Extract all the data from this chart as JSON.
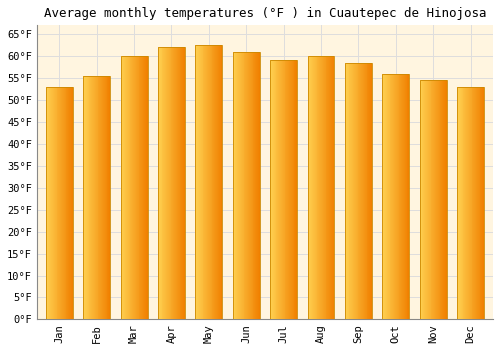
{
  "title": "Average monthly temperatures (°F ) in Cuautepec de Hinojosa",
  "months": [
    "Jan",
    "Feb",
    "Mar",
    "Apr",
    "May",
    "Jun",
    "Jul",
    "Aug",
    "Sep",
    "Oct",
    "Nov",
    "Dec"
  ],
  "values": [
    53.0,
    55.5,
    60.0,
    62.0,
    62.5,
    61.0,
    59.0,
    60.0,
    58.5,
    56.0,
    54.5,
    53.0
  ],
  "bar_color_left": "#FFD050",
  "bar_color_right": "#F08000",
  "bar_edge_color": "#CC8800",
  "background_color": "#FFFFFF",
  "plot_bg_color": "#FFF5E0",
  "grid_color": "#DDDDDD",
  "ylim": [
    0,
    67
  ],
  "yticks": [
    0,
    5,
    10,
    15,
    20,
    25,
    30,
    35,
    40,
    45,
    50,
    55,
    60,
    65
  ],
  "title_fontsize": 9,
  "tick_fontsize": 7.5,
  "font_family": "monospace"
}
